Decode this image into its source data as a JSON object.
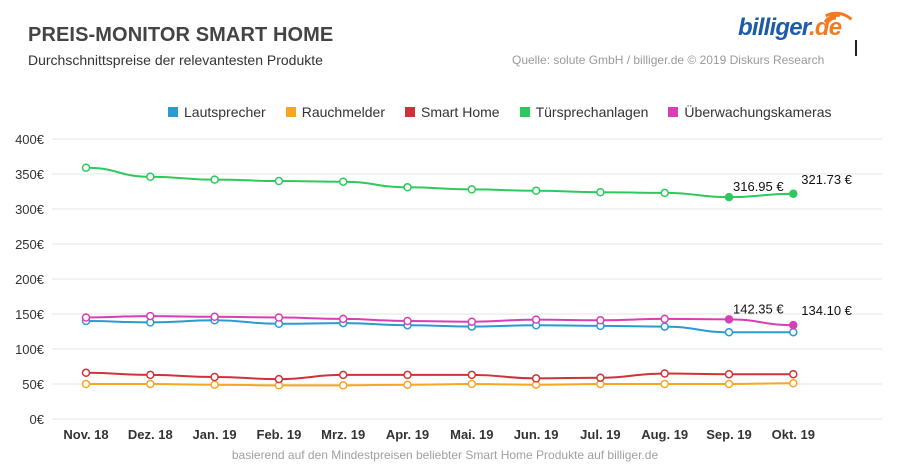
{
  "header": {
    "title": "PREIS-MONITOR SMART HOME",
    "subtitle": "Durchschnittspreise der relevantesten Produkte",
    "source": "Quelle: solute GmbH / billiger.de © 2019 Diskurs Research"
  },
  "logo": {
    "name": "billiger",
    "tld": ".de",
    "icon": "signal-waves-icon"
  },
  "footnote": "basierend auf den Mindestpreisen beliebter Smart Home Produkte auf billiger.de",
  "chart_data": {
    "type": "line",
    "title": "PREIS-MONITOR SMART HOME",
    "subtitle": "Durchschnittspreise der relevantesten Produkte",
    "xlabel": "",
    "ylabel": "",
    "ylim": [
      0,
      400
    ],
    "yticks": [
      0,
      50,
      100,
      150,
      200,
      250,
      300,
      350,
      400
    ],
    "ytick_labels": [
      "0€",
      "50€",
      "100€",
      "150€",
      "200€",
      "250€",
      "300€",
      "350€",
      "400€"
    ],
    "grid": true,
    "legend_position": "top",
    "categories": [
      "Nov. 18",
      "Dez. 18",
      "Jan. 19",
      "Feb. 19",
      "Mrz. 19",
      "Apr. 19",
      "Mai. 19",
      "Jun. 19",
      "Jul. 19",
      "Aug. 19",
      "Sep. 19",
      "Okt. 19"
    ],
    "series": [
      {
        "name": "Lautsprecher",
        "color": "#2a9ad0",
        "values": [
          140,
          138,
          141,
          136,
          137,
          134,
          132,
          134,
          133,
          132,
          124,
          124
        ]
      },
      {
        "name": "Rauchmelder",
        "color": "#f5a623",
        "values": [
          50,
          50,
          49,
          48,
          48,
          49,
          50,
          49,
          50,
          50,
          50,
          51
        ]
      },
      {
        "name": "Smart Home",
        "color": "#d0323a",
        "values": [
          66,
          63,
          60,
          57,
          63,
          63,
          63,
          58,
          59,
          65,
          64,
          64
        ]
      },
      {
        "name": "Türsprechanlagen",
        "color": "#2ec95c",
        "values": [
          359,
          346,
          342,
          340,
          339,
          331,
          328,
          326,
          324,
          323,
          316.95,
          321.73
        ]
      },
      {
        "name": "Überwachungskameras",
        "color": "#d83fb4",
        "values": [
          145,
          147,
          146,
          145,
          143,
          140,
          139,
          142,
          141,
          143,
          142.35,
          134.1
        ]
      }
    ],
    "annotations": [
      {
        "series": "Türsprechanlagen",
        "category": "Sep. 19",
        "text": "316.95 €"
      },
      {
        "series": "Türsprechanlagen",
        "category": "Okt. 19",
        "text": "321.73 €"
      },
      {
        "series": "Überwachungskameras",
        "category": "Sep. 19",
        "text": "142.35 €"
      },
      {
        "series": "Überwachungskameras",
        "category": "Okt. 19",
        "text": "134.10 €"
      }
    ]
  }
}
